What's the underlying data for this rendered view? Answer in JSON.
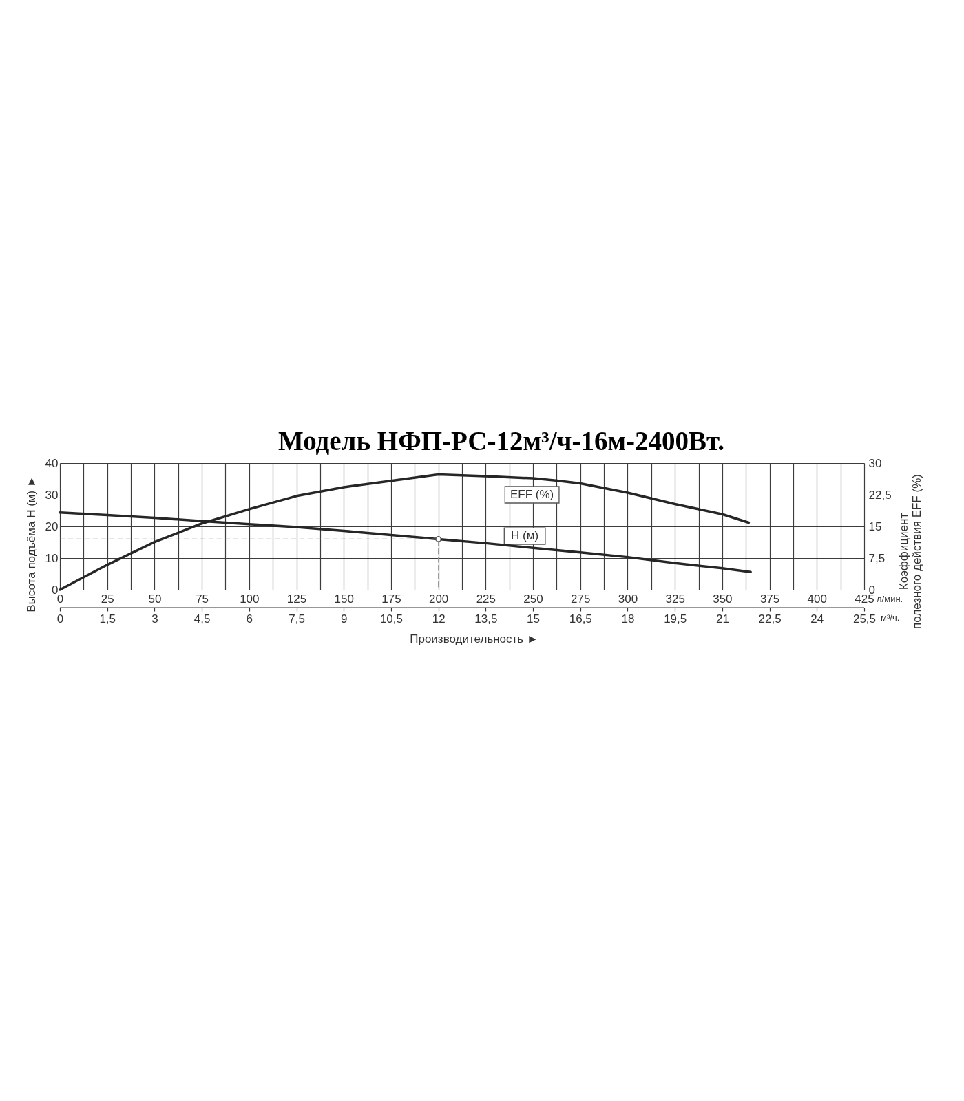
{
  "chart_data": {
    "type": "line",
    "title": "Модель НФП-РС-12м³/ч-16м-2400Вт.",
    "xlabel": "Производительность ►",
    "ylabel": "Высота подъёма H (м) ►",
    "y2label": "Коэффициент полезного действия EFF (%)",
    "annotations": [
      "л/мин.",
      "м³/ч."
    ],
    "xlim": [
      0,
      425
    ],
    "xticks": [
      0,
      {
        "value": 12.5,
        "label": null
      },
      25,
      {
        "value": 37.5,
        "label": null
      },
      50,
      {
        "value": 62.5,
        "label": null
      },
      75,
      {
        "value": 87.5,
        "label": null
      },
      100,
      {
        "value": 112.5,
        "label": null
      },
      125,
      {
        "value": 137.5,
        "label": null
      },
      150,
      {
        "value": 162.5,
        "label": null
      },
      175,
      {
        "value": 187.5,
        "label": null
      },
      200,
      {
        "value": 212.5,
        "label": null
      },
      225,
      {
        "value": 237.5,
        "label": null
      },
      250,
      {
        "value": 262.5,
        "label": null
      },
      275,
      {
        "value": 287.5,
        "label": null
      },
      300,
      {
        "value": 312.5,
        "label": null
      },
      325,
      {
        "value": 337.5,
        "label": null
      },
      350,
      {
        "value": 362.5,
        "label": null
      },
      375,
      {
        "value": 387.5,
        "label": null
      },
      400,
      {
        "value": 412.5,
        "label": null
      },
      425
    ],
    "x2lim": [
      0,
      25.5
    ],
    "x2ticks": [
      0,
      {
        "value": 1.5,
        "label": "1,5"
      },
      3,
      {
        "value": 4.5,
        "label": "4,5"
      },
      6,
      {
        "value": 7.5,
        "label": "7,5"
      },
      9,
      {
        "value": 10.5,
        "label": "10,5"
      },
      12,
      {
        "value": 13.5,
        "label": "13,5"
      },
      15,
      {
        "value": 16.5,
        "label": "16,5"
      },
      18,
      {
        "value": 19.5,
        "label": "19,5"
      },
      21,
      {
        "value": 22.5,
        "label": "22,5"
      },
      24,
      {
        "value": 25.5,
        "label": "25,5"
      }
    ],
    "ylim": [
      0,
      40
    ],
    "yticks": [
      0,
      10,
      20,
      30,
      40
    ],
    "y2lim": [
      0,
      30
    ],
    "y2ticks": [
      0,
      {
        "value": 7.5,
        "label": "7,5"
      },
      15,
      {
        "value": 22.5,
        "label": "22,5"
      },
      30
    ],
    "grid": true,
    "series": [
      {
        "name": "H (м)",
        "color": "#262626",
        "x": [
          0,
          25,
          50,
          75,
          100,
          125,
          150,
          175,
          200,
          225,
          250,
          275,
          300,
          325,
          350,
          365
        ],
        "values": [
          24.4,
          23.6,
          22.7,
          21.7,
          20.7,
          19.8,
          18.6,
          17.3,
          16.0,
          14.7,
          13.2,
          11.8,
          10.3,
          8.4,
          6.8,
          5.6
        ]
      },
      {
        "name": "EFF (%)",
        "color": "#262626",
        "axis": "y2",
        "x": [
          0,
          25,
          50,
          75,
          100,
          125,
          150,
          175,
          200,
          225,
          250,
          262,
          275,
          300,
          325,
          350,
          364
        ],
        "values": [
          0,
          5.9,
          11.3,
          15.7,
          19.1,
          22.2,
          24.3,
          25.8,
          27.3,
          26.9,
          26.4,
          25.9,
          25.2,
          23.0,
          20.3,
          17.9,
          15.9
        ]
      },
      {
        "type": "line",
        "line_style": "dashed",
        "color": "#9a9a9a",
        "x": [
          0,
          200,
          200
        ],
        "values": [
          16,
          16,
          0
        ]
      },
      {
        "type": "scatter",
        "marker": "circle",
        "color": "#555555",
        "x": [
          200
        ],
        "values": [
          16
        ]
      }
    ]
  }
}
